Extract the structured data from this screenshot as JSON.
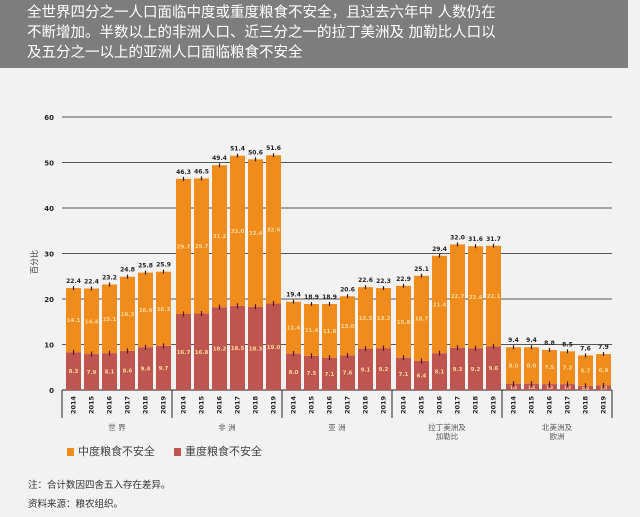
{
  "header": {
    "text": "全世界四分之一人口面临中度或重度粮食不安全，且过去六年中 人数仍在不断增加。半数以上的非洲人口、近三分之一的拉丁美洲及 加勒比人口以及五分之一以上的亚洲人口面临粮食不安全"
  },
  "colors": {
    "moderate": "#ef8c1c",
    "severe": "#be5550",
    "inner_label": "#fcd89a"
  },
  "chart_data": {
    "type": "bar",
    "stacked": true,
    "ylabel": "百分比",
    "ylim": [
      0,
      60
    ],
    "yticks": [
      "0",
      "10",
      "20",
      "30",
      "40",
      "50",
      "60"
    ],
    "grid": true,
    "years": [
      "2014",
      "2015",
      "2016",
      "2017",
      "2018",
      "2019"
    ],
    "groups": [
      {
        "name": "世 界",
        "totals": [
          "22.4",
          "22.4",
          "23.2",
          "24.8",
          "25.8",
          "25.9"
        ],
        "moderate": [
          14.1,
          14.4,
          15.1,
          16.3,
          16.4,
          16.3
        ],
        "severe": [
          8.3,
          7.9,
          8.1,
          8.6,
          9.4,
          9.7
        ]
      },
      {
        "name": "非 洲",
        "totals": [
          "46.3",
          "46.5",
          "49.4",
          "51.4",
          "50.6",
          "51.6"
        ],
        "moderate": [
          29.7,
          29.7,
          31.2,
          33.0,
          32.4,
          32.6
        ],
        "severe": [
          16.7,
          16.8,
          18.2,
          18.5,
          18.3,
          19.0
        ]
      },
      {
        "name": "亚 洲",
        "totals": [
          "19.4",
          "18.9",
          "18.9",
          "20.6",
          "22.6",
          "22.3"
        ],
        "moderate": [
          11.4,
          11.4,
          11.8,
          13.0,
          13.5,
          13.2
        ],
        "severe": [
          8.0,
          7.5,
          7.1,
          7.6,
          9.1,
          9.2
        ]
      },
      {
        "name": "拉丁美洲及\n加勒比",
        "totals": [
          "22.9",
          "25.1",
          "29.4",
          "32.0",
          "31.6",
          "31.7"
        ],
        "moderate": [
          15.8,
          18.7,
          21.4,
          22.7,
          22.4,
          22.1
        ],
        "severe": [
          7.1,
          6.4,
          8.1,
          9.3,
          9.2,
          9.6
        ]
      },
      {
        "name": "北美洲及\n欧洲",
        "totals": [
          "9.4",
          "9.4",
          "8.8",
          "8.5",
          "7.6",
          "7.9"
        ],
        "moderate": [
          8.0,
          8.0,
          7.5,
          7.2,
          6.7,
          6.9
        ],
        "severe": [
          1.4,
          1.4,
          1.3,
          1.3,
          0.9,
          1.0
        ]
      }
    ],
    "legend": {
      "placement": "bottom-left",
      "moderate": "中度粮食不安全",
      "severe": "重度粮食不安全"
    }
  },
  "notes": {
    "note": "注：合计数因四舍五入存在差异。",
    "source": "资料来源：粮农组织。"
  }
}
